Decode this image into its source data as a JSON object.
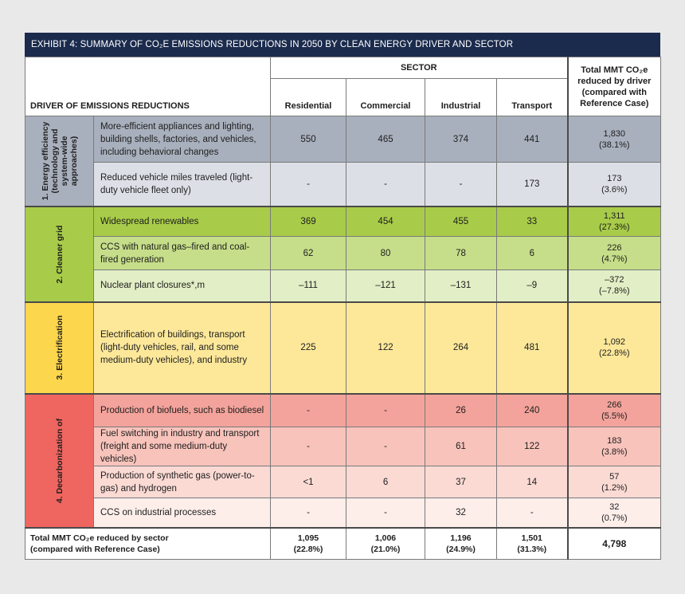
{
  "title": "EXHIBIT 4: SUMMARY OF CO₂E EMISSIONS REDUCTIONS IN 2050 BY CLEAN ENERGY DRIVER AND SECTOR",
  "header": {
    "driver_label": "DRIVER OF EMISSIONS REDUCTIONS",
    "sector_label": "SECTOR",
    "columns": [
      "Residential",
      "Commercial",
      "Industrial",
      "Transport"
    ],
    "total_line1": "Total MMT CO₂e",
    "total_line2": "reduced by driver",
    "total_line3": "(compared with",
    "total_line4": "Reference Case)"
  },
  "colors": {
    "energy_dark": "#a9b0bd",
    "energy_light": "#dcdfe6",
    "grid_dark": "#a8cc49",
    "grid_mid": "#c6de89",
    "grid_light": "#e2eec5",
    "elec": "#fde89a",
    "elec_label": "#fcd64d",
    "decarb_label": "#ef6560",
    "decarb_1": "#f3a39b",
    "decarb_2": "#f8c3bb",
    "decarb_3": "#fbdad4",
    "decarb_4": "#fdeeea"
  },
  "groups": [
    {
      "label_line1": "1. Energy efficiency",
      "label_line2": "(technology and",
      "label_line3": "system-wide",
      "label_line4": "approaches)",
      "rows": [
        {
          "desc": "More-efficient appliances and lighting, building shells, factories, and vehicles, including behavioral changes",
          "values": [
            "550",
            "465",
            "374",
            "441"
          ],
          "total": "1,830",
          "pct": "(38.1%)"
        },
        {
          "desc": "Reduced vehicle miles traveled (light-duty vehicle fleet only)",
          "values": [
            "-",
            "-",
            "-",
            "173"
          ],
          "total": "173",
          "pct": "(3.6%)"
        }
      ]
    },
    {
      "label_line1": "2. Cleaner grid",
      "rows": [
        {
          "desc": "Widespread renewables",
          "values": [
            "369",
            "454",
            "455",
            "33"
          ],
          "total": "1,311",
          "pct": "(27.3%)"
        },
        {
          "desc": "CCS with natural gas–fired and coal-fired generation",
          "values": [
            "62",
            "80",
            "78",
            "6"
          ],
          "total": "226",
          "pct": "(4.7%)"
        },
        {
          "desc": "Nuclear plant closures*,m",
          "values": [
            "–111",
            "–121",
            "–131",
            "–9"
          ],
          "total": "–372",
          "pct": "(–7.8%)"
        }
      ]
    },
    {
      "label_line1": "3. Electrification",
      "rows": [
        {
          "desc": "Electrification of buildings, transport (light-duty vehicles, rail, and some medium-duty vehicles), and industry",
          "values": [
            "225",
            "122",
            "264",
            "481"
          ],
          "total": "1,092",
          "pct": "(22.8%)"
        }
      ]
    },
    {
      "label_line1": "4. Decarbonization of",
      "rows": [
        {
          "desc": "Production of biofuels, such as biodiesel",
          "values": [
            "-",
            "-",
            "26",
            "240"
          ],
          "total": "266",
          "pct": "(5.5%)"
        },
        {
          "desc": "Fuel switching in industry and transport (freight and some medium-duty vehicles)",
          "values": [
            "-",
            "-",
            "61",
            "122"
          ],
          "total": "183",
          "pct": "(3.8%)"
        },
        {
          "desc": "Production of synthetic gas (power-to-gas) and hydrogen",
          "values": [
            "<1",
            "6",
            "37",
            "14"
          ],
          "total": "57",
          "pct": "(1.2%)"
        },
        {
          "desc": "CCS on industrial processes",
          "values": [
            "-",
            "-",
            "32",
            "-"
          ],
          "total": "32",
          "pct": "(0.7%)"
        }
      ]
    }
  ],
  "footer": {
    "label_line1": "Total MMT CO₂e reduced by sector",
    "label_line2": "(compared with Reference Case)",
    "values": [
      {
        "v": "1,095",
        "p": "(22.8%)"
      },
      {
        "v": "1,006",
        "p": "(21.0%)"
      },
      {
        "v": "1,196",
        "p": "(24.9%)"
      },
      {
        "v": "1,501",
        "p": "(31.3%)"
      }
    ],
    "grand_total": "4,798"
  }
}
